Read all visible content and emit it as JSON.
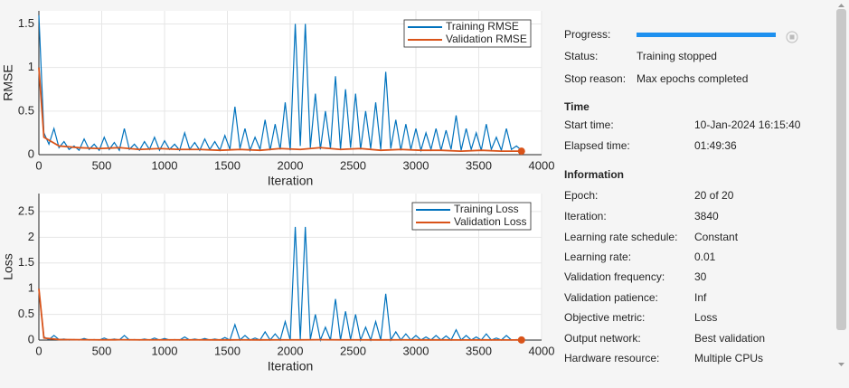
{
  "chart_data": [
    {
      "type": "line",
      "xlabel": "Iteration",
      "ylabel": "RMSE",
      "xlim": [
        0,
        4000
      ],
      "ylim": [
        0,
        1.65
      ],
      "xticks": [
        0,
        500,
        1000,
        1500,
        2000,
        2500,
        3000,
        3500,
        4000
      ],
      "yticks": [
        0,
        0.5,
        1,
        1.5
      ],
      "grid": true,
      "legend": "northeast",
      "series": [
        {
          "name": "Training RMSE",
          "color": "#0072bd",
          "x": [
            0,
            40,
            80,
            120,
            160,
            200,
            240,
            280,
            320,
            360,
            400,
            440,
            480,
            520,
            560,
            600,
            640,
            680,
            720,
            760,
            800,
            840,
            880,
            920,
            960,
            1000,
            1040,
            1080,
            1120,
            1160,
            1200,
            1240,
            1280,
            1320,
            1360,
            1400,
            1440,
            1480,
            1520,
            1560,
            1600,
            1640,
            1680,
            1720,
            1760,
            1800,
            1840,
            1880,
            1920,
            1960,
            2000,
            2040,
            2080,
            2120,
            2160,
            2200,
            2240,
            2280,
            2320,
            2360,
            2400,
            2440,
            2480,
            2520,
            2560,
            2600,
            2640,
            2680,
            2720,
            2760,
            2800,
            2840,
            2880,
            2920,
            2960,
            3000,
            3040,
            3080,
            3120,
            3160,
            3200,
            3240,
            3280,
            3320,
            3360,
            3400,
            3440,
            3480,
            3520,
            3560,
            3600,
            3640,
            3680,
            3720,
            3760,
            3800,
            3840
          ],
          "values": [
            1.6,
            0.25,
            0.12,
            0.3,
            0.08,
            0.15,
            0.06,
            0.1,
            0.05,
            0.18,
            0.06,
            0.12,
            0.05,
            0.2,
            0.06,
            0.14,
            0.05,
            0.3,
            0.06,
            0.12,
            0.05,
            0.15,
            0.06,
            0.2,
            0.05,
            0.16,
            0.06,
            0.12,
            0.05,
            0.25,
            0.06,
            0.14,
            0.05,
            0.18,
            0.06,
            0.15,
            0.05,
            0.22,
            0.06,
            0.55,
            0.07,
            0.3,
            0.05,
            0.2,
            0.06,
            0.4,
            0.05,
            0.35,
            0.06,
            0.6,
            0.05,
            1.5,
            0.1,
            1.5,
            0.08,
            0.7,
            0.06,
            0.5,
            0.07,
            0.9,
            0.06,
            0.75,
            0.08,
            0.7,
            0.06,
            0.5,
            0.07,
            0.6,
            0.06,
            0.95,
            0.07,
            0.4,
            0.05,
            0.35,
            0.06,
            0.3,
            0.05,
            0.25,
            0.06,
            0.3,
            0.05,
            0.28,
            0.06,
            0.45,
            0.05,
            0.3,
            0.06,
            0.25,
            0.05,
            0.35,
            0.06,
            0.2,
            0.05,
            0.3,
            0.06,
            0.1,
            0.05
          ]
        },
        {
          "name": "Validation RMSE",
          "color": "#d95319",
          "x": [
            0,
            40,
            160,
            320,
            480,
            640,
            800,
            960,
            1120,
            1280,
            1440,
            1600,
            1760,
            1920,
            2080,
            2240,
            2400,
            2560,
            2720,
            2880,
            3040,
            3200,
            3360,
            3520,
            3680,
            3840
          ],
          "values": [
            1.0,
            0.2,
            0.1,
            0.08,
            0.07,
            0.08,
            0.06,
            0.07,
            0.06,
            0.06,
            0.05,
            0.06,
            0.05,
            0.07,
            0.06,
            0.08,
            0.06,
            0.07,
            0.05,
            0.06,
            0.05,
            0.05,
            0.04,
            0.05,
            0.04,
            0.04
          ]
        }
      ]
    },
    {
      "type": "line",
      "xlabel": "Iteration",
      "ylabel": "Loss",
      "xlim": [
        0,
        4000
      ],
      "ylim": [
        0,
        2.85
      ],
      "xticks": [
        0,
        500,
        1000,
        1500,
        2000,
        2500,
        3000,
        3500,
        4000
      ],
      "yticks": [
        0,
        0.5,
        1,
        1.5,
        2,
        2.5
      ],
      "grid": true,
      "legend": "northeast",
      "series": [
        {
          "name": "Training Loss",
          "color": "#0072bd",
          "x": [
            0,
            40,
            80,
            120,
            160,
            200,
            240,
            280,
            320,
            360,
            400,
            440,
            480,
            520,
            560,
            600,
            640,
            680,
            720,
            760,
            800,
            840,
            880,
            920,
            960,
            1000,
            1040,
            1080,
            1120,
            1160,
            1200,
            1240,
            1280,
            1320,
            1360,
            1400,
            1440,
            1480,
            1520,
            1560,
            1600,
            1640,
            1680,
            1720,
            1760,
            1800,
            1840,
            1880,
            1920,
            1960,
            2000,
            2040,
            2080,
            2120,
            2160,
            2200,
            2240,
            2280,
            2320,
            2360,
            2400,
            2440,
            2480,
            2520,
            2560,
            2600,
            2640,
            2680,
            2720,
            2760,
            2800,
            2840,
            2880,
            2920,
            2960,
            3000,
            3040,
            3080,
            3120,
            3160,
            3200,
            3240,
            3280,
            3320,
            3360,
            3400,
            3440,
            3480,
            3520,
            3560,
            3600,
            3640,
            3680,
            3720,
            3760,
            3800,
            3840
          ],
          "values": [
            1.0,
            0.06,
            0.01,
            0.09,
            0.01,
            0.02,
            0.0,
            0.01,
            0.0,
            0.03,
            0.0,
            0.01,
            0.0,
            0.04,
            0.0,
            0.02,
            0.0,
            0.09,
            0.0,
            0.01,
            0.0,
            0.02,
            0.0,
            0.04,
            0.0,
            0.03,
            0.0,
            0.01,
            0.0,
            0.06,
            0.0,
            0.02,
            0.0,
            0.03,
            0.0,
            0.02,
            0.0,
            0.05,
            0.0,
            0.3,
            0.0,
            0.09,
            0.0,
            0.04,
            0.0,
            0.16,
            0.0,
            0.12,
            0.0,
            0.36,
            0.0,
            2.2,
            0.01,
            2.2,
            0.01,
            0.5,
            0.0,
            0.25,
            0.0,
            0.8,
            0.0,
            0.56,
            0.01,
            0.5,
            0.0,
            0.25,
            0.0,
            0.36,
            0.0,
            0.9,
            0.0,
            0.16,
            0.0,
            0.12,
            0.0,
            0.09,
            0.0,
            0.06,
            0.0,
            0.09,
            0.0,
            0.08,
            0.0,
            0.2,
            0.0,
            0.09,
            0.0,
            0.06,
            0.0,
            0.12,
            0.0,
            0.04,
            0.0,
            0.09,
            0.0,
            0.01,
            0.0
          ]
        },
        {
          "name": "Validation Loss",
          "color": "#d95319",
          "x": [
            0,
            40,
            160,
            320,
            480,
            640,
            800,
            960,
            1120,
            1280,
            1440,
            1600,
            1760,
            1920,
            2080,
            2240,
            2400,
            2560,
            2720,
            2880,
            3040,
            3200,
            3360,
            3520,
            3680,
            3840
          ],
          "values": [
            1.0,
            0.04,
            0.01,
            0.006,
            0.005,
            0.006,
            0.004,
            0.005,
            0.004,
            0.004,
            0.003,
            0.004,
            0.003,
            0.005,
            0.004,
            0.006,
            0.004,
            0.005,
            0.003,
            0.004,
            0.003,
            0.003,
            0.002,
            0.003,
            0.002,
            0.002
          ]
        }
      ]
    }
  ],
  "panel": {
    "progress": "Progress:",
    "status": {
      "label": "Status:",
      "value": "Training stopped"
    },
    "stop_reason": {
      "label": "Stop reason:",
      "value": "Max epochs completed"
    },
    "time": {
      "heading": "Time",
      "rows": [
        {
          "label": "Start time:",
          "value": "10-Jan-2024 16:15:40"
        },
        {
          "label": "Elapsed time:",
          "value": "01:49:36"
        }
      ]
    },
    "information": {
      "heading": "Information",
      "rows": [
        {
          "label": "Epoch:",
          "value": "20 of 20"
        },
        {
          "label": "Iteration:",
          "value": "3840"
        },
        {
          "label": "Learning rate schedule:",
          "value": "Constant"
        },
        {
          "label": "Learning rate:",
          "value": "0.01"
        },
        {
          "label": "Validation frequency:",
          "value": "30"
        },
        {
          "label": "Validation patience:",
          "value": "Inf"
        },
        {
          "label": "Objective metric:",
          "value": "Loss"
        },
        {
          "label": "Output network:",
          "value": "Best validation"
        },
        {
          "label": "Hardware resource:",
          "value": "Multiple CPUs"
        }
      ]
    }
  }
}
